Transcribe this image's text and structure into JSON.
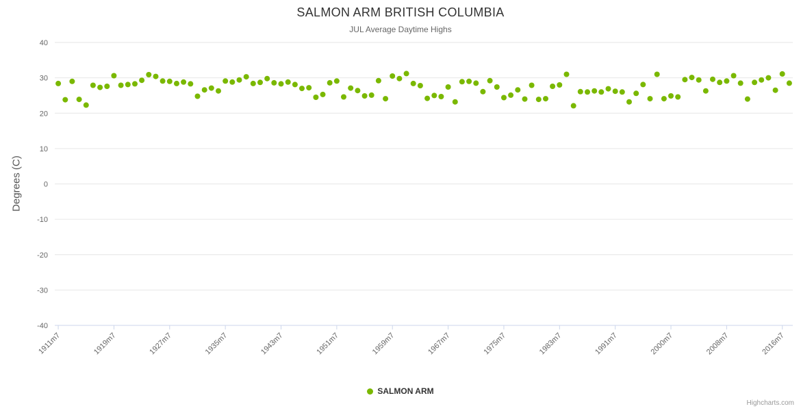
{
  "chart_data": {
    "type": "scatter",
    "title": "SALMON ARM BRITISH COLUMBIA",
    "subtitle": "JUL Average Daytime Highs",
    "ylabel": "Degrees (C)",
    "ylim": [
      -40,
      40
    ],
    "yticks": [
      40,
      30,
      20,
      10,
      0,
      -10,
      -20,
      -30,
      -40
    ],
    "grid": true,
    "legend_position": "bottom-center",
    "xtick_label_every": 8,
    "xtick_labels_shown": [
      "1911m7",
      "1919m7",
      "1927m7",
      "1935m7",
      "1943m7",
      "1951m7",
      "1959m7",
      "1967m7",
      "1975m7",
      "1983m7",
      "1991m7",
      "2000m7",
      "2008m7",
      "2016m7"
    ],
    "categories": [
      "1911m7",
      "1912m7",
      "1913m7",
      "1914m7",
      "1915m7",
      "1916m7",
      "1917m7",
      "1918m7",
      "1919m7",
      "1920m7",
      "1921m7",
      "1922m7",
      "1923m7",
      "1924m7",
      "1925m7",
      "1926m7",
      "1927m7",
      "1928m7",
      "1929m7",
      "1930m7",
      "1931m7",
      "1932m7",
      "1933m7",
      "1934m7",
      "1935m7",
      "1936m7",
      "1937m7",
      "1938m7",
      "1939m7",
      "1940m7",
      "1941m7",
      "1942m7",
      "1943m7",
      "1944m7",
      "1945m7",
      "1946m7",
      "1947m7",
      "1948m7",
      "1949m7",
      "1950m7",
      "1951m7",
      "1952m7",
      "1953m7",
      "1954m7",
      "1955m7",
      "1956m7",
      "1957m7",
      "1958m7",
      "1959m7",
      "1960m7",
      "1961m7",
      "1962m7",
      "1963m7",
      "1964m7",
      "1965m7",
      "1966m7",
      "1967m7",
      "1968m7",
      "1969m7",
      "1970m7",
      "1971m7",
      "1972m7",
      "1973m7",
      "1974m7",
      "1975m7",
      "1976m7",
      "1977m7",
      "1978m7",
      "1979m7",
      "1980m7",
      "1981m7",
      "1982m7",
      "1983m7",
      "1984m7",
      "1985m7",
      "1986m7",
      "1987m7",
      "1988m7",
      "1989m7",
      "1990m7",
      "1991m7",
      "1992m7",
      "1993m7",
      "1994m7",
      "1996m7",
      "1997m7",
      "1998m7",
      "1999m7",
      "2000m7",
      "2001m7",
      "2002m7",
      "2003m7",
      "2004m7",
      "2005m7",
      "2006m7",
      "2007m7",
      "2008m7",
      "2009m7",
      "2010m7",
      "2011m7",
      "2012m7",
      "2013m7",
      "2014m7",
      "2015m7",
      "2016m7",
      "2017m7"
    ],
    "series": [
      {
        "name": "SALMON ARM",
        "color": "#7ab800",
        "values": [
          28.4,
          23.8,
          29.0,
          23.9,
          22.3,
          27.9,
          27.3,
          27.6,
          30.6,
          27.9,
          28.1,
          28.3,
          29.3,
          30.9,
          30.4,
          29.1,
          29.0,
          28.4,
          28.8,
          28.3,
          24.8,
          26.6,
          27.1,
          26.3,
          29.1,
          28.8,
          29.4,
          30.3,
          28.4,
          28.7,
          29.8,
          28.6,
          28.3,
          28.8,
          28.1,
          27.0,
          27.2,
          24.5,
          25.3,
          28.6,
          29.1,
          24.6,
          27.1,
          26.4,
          24.9,
          25.1,
          29.2,
          24.1,
          30.5,
          29.8,
          31.2,
          28.4,
          27.8,
          24.2,
          25.0,
          24.7,
          27.4,
          23.2,
          28.9,
          29.0,
          28.5,
          26.1,
          29.2,
          27.4,
          24.4,
          25.1,
          26.6,
          24.0,
          27.9,
          23.9,
          24.1,
          27.6,
          28.0,
          31.0,
          22.1,
          26.1,
          26.0,
          26.3,
          26.0,
          26.9,
          26.2,
          26.0,
          23.2,
          25.6,
          28.1,
          24.1,
          31.0,
          24.1,
          24.9,
          24.6,
          29.5,
          30.1,
          29.4,
          26.3,
          29.6,
          28.7,
          29.1,
          30.6,
          28.5,
          24.0,
          28.7,
          29.4,
          30.0,
          26.5,
          31.1,
          28.5
        ]
      }
    ]
  },
  "credits": {
    "label": "Highcharts.com"
  }
}
